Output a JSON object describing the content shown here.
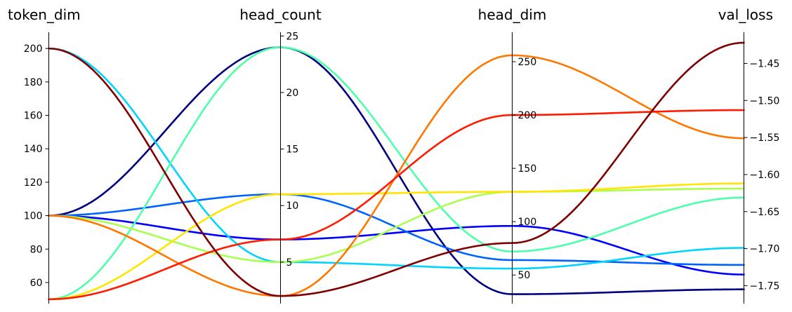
{
  "chart_data": {
    "type": "parallel_coordinates",
    "axes": [
      {
        "name": "token_dim",
        "range": [
          47.4,
          209.7
        ],
        "ticks": [
          60,
          80,
          100,
          120,
          140,
          160,
          180,
          200
        ],
        "tick_side": "left"
      },
      {
        "name": "head_count",
        "range": [
          1.33,
          25.33
        ],
        "ticks": [
          5,
          10,
          15,
          20,
          25
        ],
        "tick_side": "right"
      },
      {
        "name": "head_dim",
        "range": [
          23.2,
          277.6
        ],
        "ticks": [
          50,
          100,
          150,
          200,
          250
        ],
        "tick_side": "right"
      },
      {
        "name": "val_loss",
        "range": [
          -1.7742,
          -1.4079
        ],
        "ticks": [
          -1.75,
          -1.7,
          -1.65,
          -1.6,
          -1.55,
          -1.5,
          -1.45
        ],
        "tick_labels": [
          "−1.75",
          "−1.70",
          "−1.65",
          "−1.60",
          "−1.55",
          "−1.50",
          "−1.45"
        ],
        "tick_side": "right"
      }
    ],
    "series": [
      {
        "color": "#00007f",
        "values": [
          100,
          24,
          32,
          -1.755
        ]
      },
      {
        "color": "#0000ff",
        "values": [
          100,
          7,
          96,
          -1.735
        ]
      },
      {
        "color": "#0063ff",
        "values": [
          100,
          11,
          64,
          -1.722
        ]
      },
      {
        "color": "#00d4ff",
        "values": [
          200,
          5,
          56,
          -1.699
        ]
      },
      {
        "color": "#4dffaa",
        "values": [
          50,
          24,
          72,
          -1.631
        ]
      },
      {
        "color": "#a9ff4d",
        "values": [
          100,
          5,
          128,
          -1.619
        ]
      },
      {
        "color": "#ffe500",
        "values": [
          50,
          11,
          128,
          -1.612
        ]
      },
      {
        "color": "#ff7700",
        "values": [
          100,
          2,
          256,
          -1.551
        ]
      },
      {
        "color": "#ff1a00",
        "values": [
          50,
          7,
          200,
          -1.513
        ]
      },
      {
        "color": "#7f0000",
        "values": [
          200,
          2,
          80,
          -1.422
        ]
      }
    ]
  }
}
